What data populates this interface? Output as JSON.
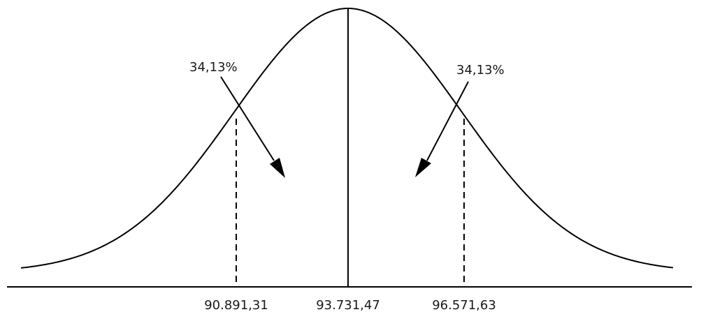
{
  "diagram": {
    "distribution": "normal",
    "mean_label": "93.731,47",
    "left_sigma_label": "90.891,31",
    "right_sigma_label": "96.571,63",
    "left_area_label": "34,13%",
    "right_area_label": "34,13%"
  },
  "colors": {
    "stroke": "#000000",
    "text": "#1a1a1a",
    "background": "#ffffff"
  }
}
